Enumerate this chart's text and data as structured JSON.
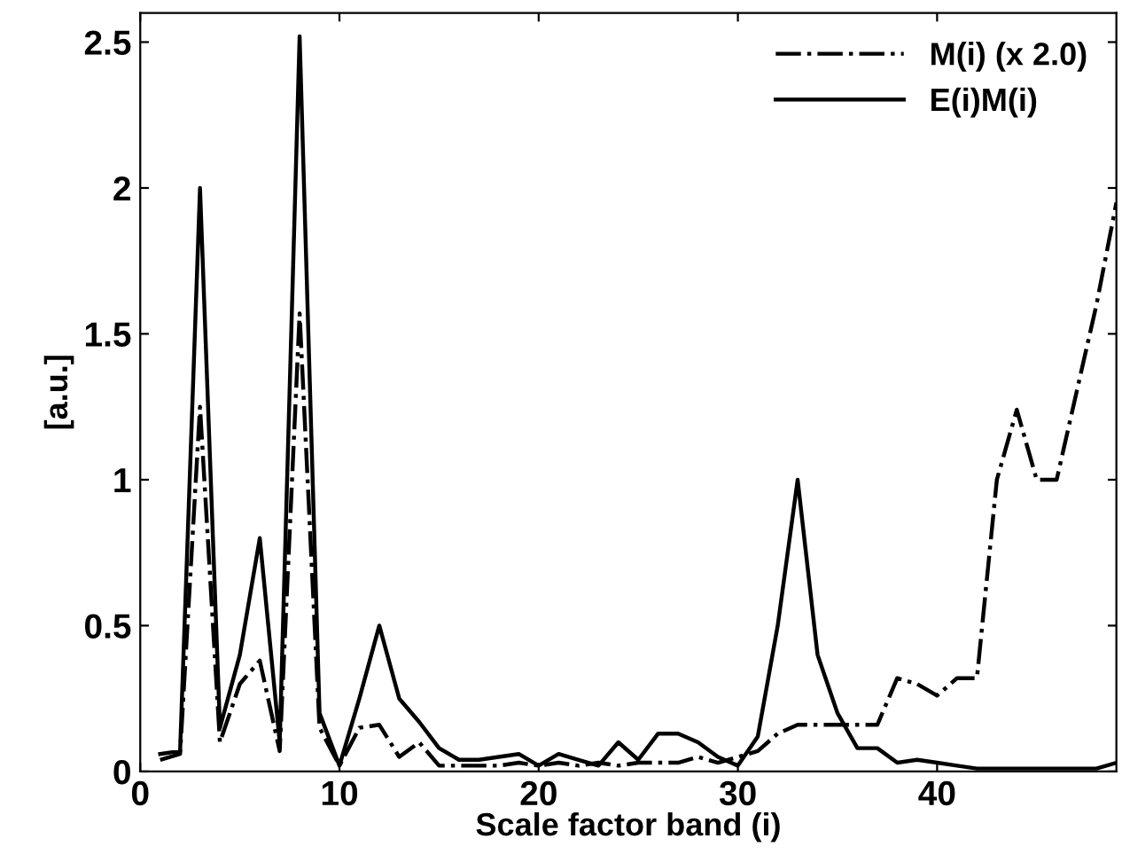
{
  "chart_data": {
    "type": "line",
    "xlabel": "Scale factor band (i)",
    "ylabel": "[a.u.]",
    "x": [
      1,
      2,
      3,
      4,
      5,
      6,
      7,
      8,
      9,
      10,
      11,
      12,
      13,
      14,
      15,
      16,
      17,
      18,
      19,
      20,
      21,
      22,
      23,
      24,
      25,
      26,
      27,
      28,
      29,
      30,
      31,
      32,
      33,
      34,
      35,
      36,
      37,
      38,
      39,
      40,
      41,
      42,
      43,
      44,
      45,
      46,
      47,
      48,
      49
    ],
    "series": [
      {
        "name": "M(i) (x 2.0)",
        "color": "#000000",
        "line_style": "dashdot",
        "values": [
          0.04,
          0.06,
          1.25,
          0.1,
          0.3,
          0.38,
          0.07,
          1.57,
          0.15,
          0.02,
          0.15,
          0.16,
          0.05,
          0.1,
          0.02,
          0.02,
          0.02,
          0.02,
          0.03,
          0.02,
          0.03,
          0.02,
          0.03,
          0.02,
          0.03,
          0.03,
          0.03,
          0.05,
          0.03,
          0.05,
          0.07,
          0.13,
          0.16,
          0.16,
          0.16,
          0.16,
          0.16,
          0.32,
          0.3,
          0.26,
          0.32,
          0.32,
          1.0,
          1.24,
          1.0,
          1.0,
          1.3,
          1.6,
          1.95
        ]
      },
      {
        "name": "E(i)M(i)",
        "color": "#000000",
        "line_style": "solid",
        "values": [
          0.06,
          0.07,
          2.0,
          0.15,
          0.4,
          0.8,
          0.1,
          2.52,
          0.2,
          0.02,
          0.25,
          0.5,
          0.25,
          0.17,
          0.08,
          0.04,
          0.04,
          0.05,
          0.06,
          0.02,
          0.06,
          0.04,
          0.02,
          0.1,
          0.04,
          0.13,
          0.13,
          0.1,
          0.05,
          0.02,
          0.12,
          0.5,
          1.0,
          0.4,
          0.2,
          0.08,
          0.08,
          0.03,
          0.04,
          0.03,
          0.02,
          0.01,
          0.01,
          0.01,
          0.01,
          0.01,
          0.01,
          0.01,
          0.03
        ]
      }
    ],
    "xlim": [
      0,
      49
    ],
    "xticks": [
      0,
      10,
      20,
      30,
      40
    ],
    "ylim": [
      0,
      2.6
    ],
    "yticks": [
      0,
      0.5,
      1,
      1.5,
      2,
      2.5
    ],
    "grid": false,
    "legend": "top right"
  }
}
